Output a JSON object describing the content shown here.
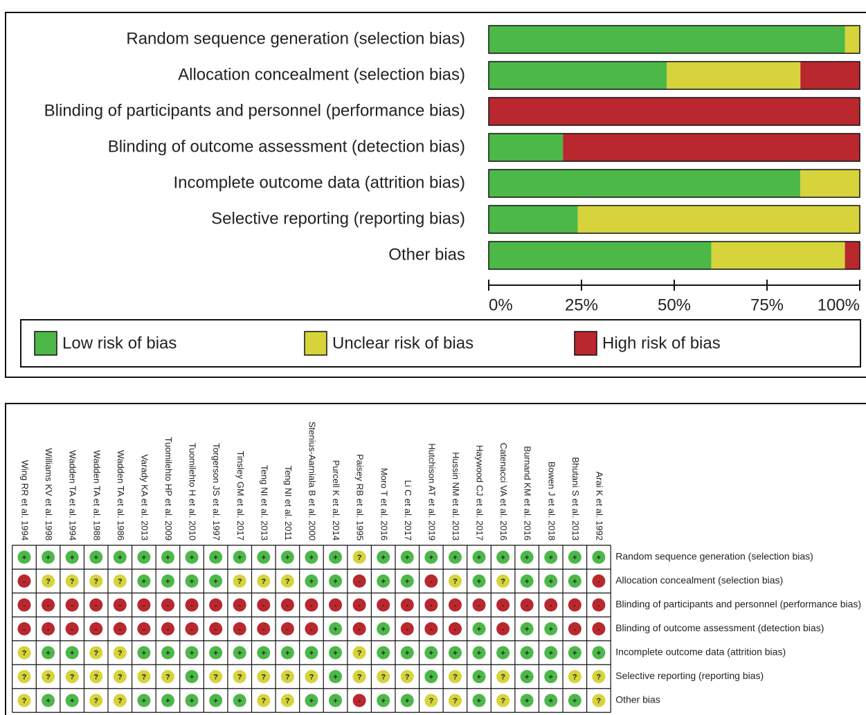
{
  "chart_data": [
    {
      "type": "stacked-bar",
      "categories": [
        "Random sequence generation (selection bias)",
        "Allocation concealment (selection bias)",
        "Blinding of participants and personnel (performance bias)",
        "Blinding of outcome assessment (detection bias)",
        "Incomplete outcome data (attrition bias)",
        "Selective reporting (reporting bias)",
        "Other bias"
      ],
      "series": [
        {
          "name": "Low risk of bias",
          "color": "#4cb848",
          "values": [
            96,
            48,
            0,
            20,
            84,
            24,
            60
          ]
        },
        {
          "name": "Unclear risk of bias",
          "color": "#d6d43a",
          "values": [
            4,
            36,
            0,
            0,
            16,
            76,
            36
          ]
        },
        {
          "name": "High risk of bias",
          "color": "#b8282e",
          "values": [
            0,
            16,
            100,
            80,
            0,
            0,
            4
          ]
        }
      ],
      "xlim": [
        0,
        100
      ],
      "xticks": [
        {
          "value": 0,
          "label": "0%"
        },
        {
          "value": 25,
          "label": "25%"
        },
        {
          "value": 50,
          "label": "50%"
        },
        {
          "value": 75,
          "label": "75%"
        },
        {
          "value": 100,
          "label": "100%"
        }
      ]
    },
    {
      "type": "matrix",
      "studies": [
        "Wing RR et al. 1994",
        "Williams KV et al. 1998",
        "Wadden TA et al. 1994",
        "Wadden TA et al. 1988",
        "Wadden TA et al. 1986",
        "Varady KA et al. 2013",
        "Tuomilehto HP et al. 2009",
        "Tuomilehto H et al. 2010",
        "Torgerson JS et al. 1997",
        "Tinsley GM et al. 2017",
        "Teng NI et al. 2013",
        "Teng NI et al. 2011",
        "Stenius-Aarniala B et al. 2000",
        "Purcell K et al. 2014",
        "Paisey RB et al. 1995",
        "Moro T et al. 2016",
        "Li C et al. 2017",
        "Hutchison AT et al. 2019",
        "Hussin NM et al. 2013",
        "Haywood CJ et al. 2017",
        "Catenacci VA et al. 2016",
        "Burnand KM et al. 2016",
        "Bowen J et al. 2018",
        "Bhutani S et al. 2013",
        "Arai K et al. 1992"
      ],
      "domains": [
        "Random sequence generation (selection bias)",
        "Allocation concealment (selection bias)",
        "Blinding of participants and personnel (performance bias)",
        "Blinding of outcome assessment (detection bias)",
        "Incomplete outcome data (attrition bias)",
        "Selective reporting (reporting bias)",
        "Other bias"
      ],
      "levels": [
        {
          "symbol": "+",
          "color": "#4cb848"
        },
        {
          "symbol": "?",
          "color": "#d6d43a"
        },
        {
          "symbol": "-",
          "color": "#b8282e"
        }
      ],
      "cells": [
        [
          "+",
          "+",
          "+",
          "+",
          "+",
          "+",
          "+",
          "+",
          "+",
          "+",
          "+",
          "+",
          "+",
          "+",
          "?",
          "+",
          "+",
          "+",
          "+",
          "+",
          "+",
          "+",
          "+",
          "+",
          "+"
        ],
        [
          "-",
          "?",
          "?",
          "?",
          "?",
          "+",
          "+",
          "+",
          "+",
          "?",
          "?",
          "?",
          "+",
          "+",
          "-",
          "+",
          "+",
          "-",
          "?",
          "+",
          "?",
          "+",
          "+",
          "+",
          "-"
        ],
        [
          "-",
          "-",
          "-",
          "-",
          "-",
          "-",
          "-",
          "-",
          "-",
          "-",
          "-",
          "-",
          "-",
          "-",
          "-",
          "-",
          "-",
          "-",
          "-",
          "-",
          "-",
          "-",
          "-",
          "-",
          "-"
        ],
        [
          "-",
          "-",
          "-",
          "-",
          "-",
          "-",
          "-",
          "-",
          "-",
          "-",
          "-",
          "-",
          "-",
          "+",
          "-",
          "+",
          "-",
          "-",
          "-",
          "+",
          "-",
          "+",
          "+",
          "-",
          "-"
        ],
        [
          "?",
          "+",
          "+",
          "?",
          "?",
          "+",
          "+",
          "+",
          "+",
          "+",
          "+",
          "+",
          "+",
          "+",
          "?",
          "+",
          "+",
          "+",
          "+",
          "+",
          "+",
          "+",
          "+",
          "+",
          "+"
        ],
        [
          "?",
          "?",
          "?",
          "?",
          "?",
          "?",
          "?",
          "+",
          "?",
          "?",
          "?",
          "?",
          "?",
          "+",
          "?",
          "?",
          "?",
          "+",
          "?",
          "+",
          "?",
          "+",
          "+",
          "?",
          "?"
        ],
        [
          "?",
          "+",
          "+",
          "?",
          "?",
          "+",
          "+",
          "+",
          "+",
          "+",
          "?",
          "?",
          "+",
          "+",
          "-",
          "+",
          "+",
          "?",
          "?",
          "+",
          "?",
          "+",
          "+",
          "+",
          "?"
        ]
      ]
    }
  ]
}
